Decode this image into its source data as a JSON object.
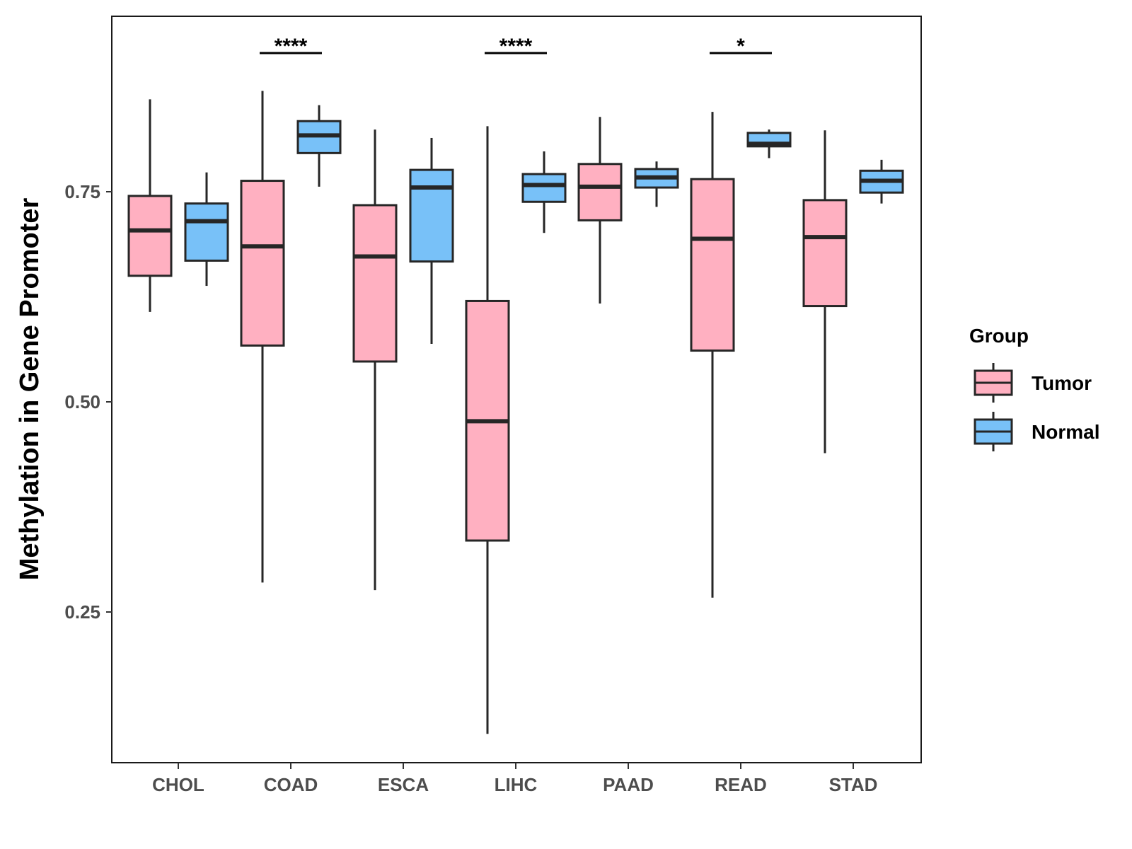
{
  "chart_data": {
    "type": "boxplot",
    "title": "",
    "xlabel": "",
    "ylabel": "Methylation in Gene Promoter",
    "ylim": [
      0.07,
      0.96
    ],
    "yticks": [
      0.25,
      0.5,
      0.75
    ],
    "ytick_labels": [
      "0.25",
      "0.50",
      "0.75"
    ],
    "categories": [
      "CHOL",
      "COAD",
      "ESCA",
      "LIHC",
      "PAAD",
      "READ",
      "STAD"
    ],
    "legend": {
      "title": "Group",
      "position": "right",
      "entries": [
        "Tumor",
        "Normal"
      ]
    },
    "series": [
      {
        "name": "Tumor",
        "color": "#FFB0C1",
        "boxes": [
          {
            "min": 0.607,
            "q1": 0.65,
            "median": 0.704,
            "q3": 0.745,
            "max": 0.86
          },
          {
            "min": 0.285,
            "q1": 0.567,
            "median": 0.685,
            "q3": 0.763,
            "max": 0.87
          },
          {
            "min": 0.276,
            "q1": 0.548,
            "median": 0.673,
            "q3": 0.734,
            "max": 0.824
          },
          {
            "min": 0.105,
            "q1": 0.335,
            "median": 0.477,
            "q3": 0.62,
            "max": 0.828
          },
          {
            "min": 0.617,
            "q1": 0.716,
            "median": 0.756,
            "q3": 0.783,
            "max": 0.839
          },
          {
            "min": 0.267,
            "q1": 0.561,
            "median": 0.694,
            "q3": 0.765,
            "max": 0.845
          },
          {
            "min": 0.439,
            "q1": 0.614,
            "median": 0.696,
            "q3": 0.74,
            "max": 0.823
          }
        ]
      },
      {
        "name": "Normal",
        "color": "#78C1F8",
        "boxes": [
          {
            "min": 0.638,
            "q1": 0.668,
            "median": 0.715,
            "q3": 0.736,
            "max": 0.773
          },
          {
            "min": 0.756,
            "q1": 0.796,
            "median": 0.817,
            "q3": 0.834,
            "max": 0.853
          },
          {
            "min": 0.569,
            "q1": 0.667,
            "median": 0.755,
            "q3": 0.776,
            "max": 0.814
          },
          {
            "min": 0.701,
            "q1": 0.738,
            "median": 0.758,
            "q3": 0.771,
            "max": 0.798
          },
          {
            "min": 0.732,
            "q1": 0.755,
            "median": 0.767,
            "q3": 0.777,
            "max": 0.786
          },
          {
            "min": 0.79,
            "q1": 0.804,
            "median": 0.807,
            "q3": 0.82,
            "max": 0.824
          },
          {
            "min": 0.736,
            "q1": 0.749,
            "median": 0.763,
            "q3": 0.775,
            "max": 0.788
          }
        ]
      }
    ],
    "significance": [
      {
        "category": "COAD",
        "label": "****"
      },
      {
        "category": "LIHC",
        "label": "****"
      },
      {
        "category": "READ",
        "label": "*"
      }
    ]
  }
}
